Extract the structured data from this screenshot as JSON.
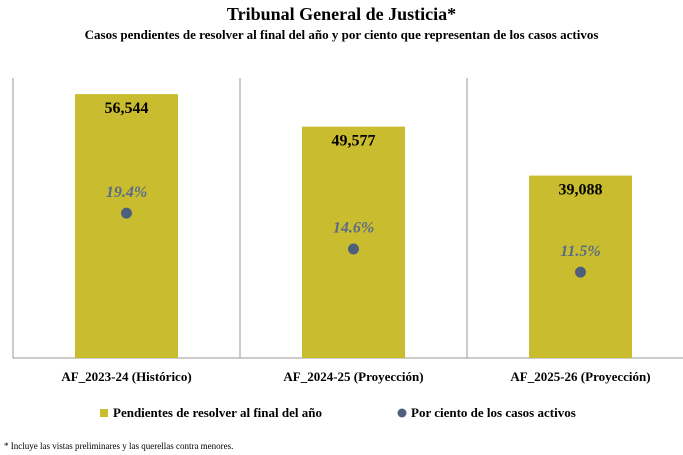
{
  "chart_data": {
    "type": "bar",
    "title": "Tribunal General de Justicia*",
    "subtitle": "Casos pendientes de resolver al final del año y por ciento que representan de los casos activos",
    "categories": [
      "AF_2023-24 (Histórico)",
      "AF_2024-25 (Proyección)",
      "AF_2025-26 (Proyección)"
    ],
    "series": [
      {
        "name": "Pendientes de resolver al final del año",
        "color": "#c9bd2f",
        "values": [
          56544,
          49577,
          39088
        ],
        "value_labels": [
          "56,544",
          "49,577",
          "39,088"
        ]
      },
      {
        "name": "Por ciento de los casos activos",
        "type": "scatter",
        "axis": "y2",
        "color": "#4e5f7e",
        "values": [
          19.4,
          14.6,
          11.5
        ],
        "value_labels": [
          "19.4%",
          "14.6%",
          "11.5%"
        ]
      }
    ],
    "ylim": [
      0,
      60000
    ],
    "y2lim": [
      0,
      37.5
    ],
    "footnote": "* Incluye las vistas preliminares y las querellas contra menores."
  }
}
